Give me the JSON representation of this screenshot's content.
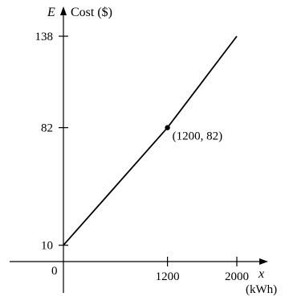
{
  "chart_data": {
    "type": "line",
    "x": [
      0,
      1200,
      2000
    ],
    "y": [
      10,
      82,
      138
    ],
    "xlim": [
      0,
      2000
    ],
    "ylim": [
      0,
      138
    ],
    "x_ticks": [
      1200,
      2000
    ],
    "y_ticks": [
      10,
      82,
      138
    ],
    "origin_label": "0",
    "x_axis_var": "x",
    "x_axis_unit": "(kWh)",
    "y_axis_var": "E",
    "y_axis_label": "Cost ($)",
    "grid": false,
    "point": {
      "x": 1200,
      "y": 82,
      "label": "(1200, 82)"
    },
    "line_color": "#000000"
  }
}
